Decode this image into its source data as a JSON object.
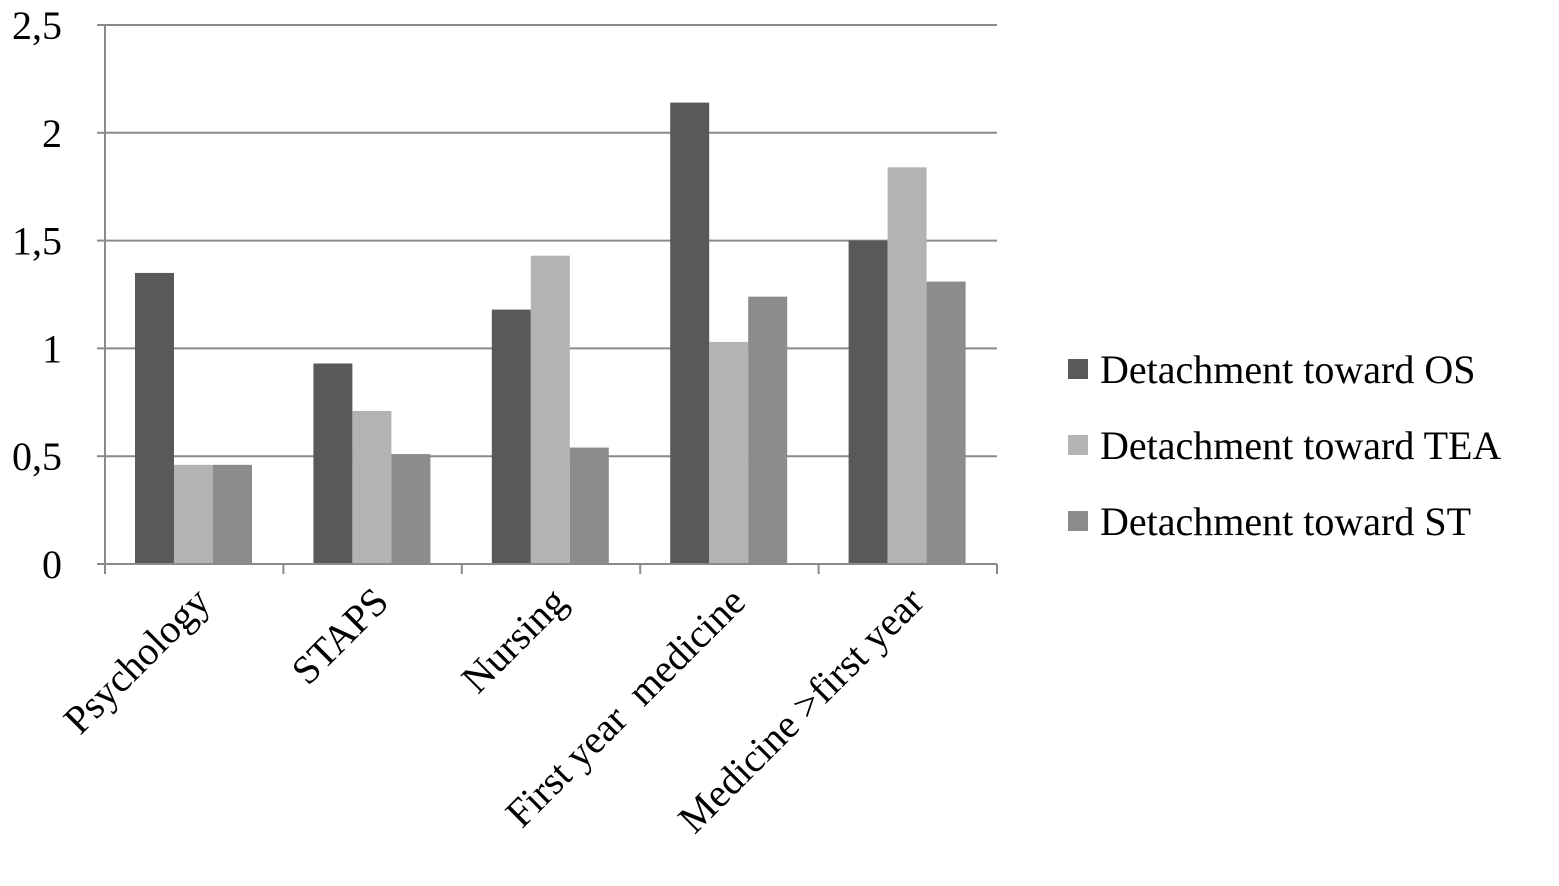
{
  "chart_data": {
    "type": "bar",
    "title": "",
    "xlabel": "",
    "ylabel": "",
    "categories": [
      "Psychology",
      "STAPS",
      "Nursing",
      "First year  medicine",
      "Medicine >first year"
    ],
    "series": [
      {
        "name": "Detachment toward OS",
        "color": "#595959",
        "values": [
          1.35,
          0.93,
          1.18,
          2.14,
          1.5
        ]
      },
      {
        "name": "Detachment toward TEA",
        "color": "#b3b3b3",
        "values": [
          0.46,
          0.71,
          1.43,
          1.03,
          1.84
        ]
      },
      {
        "name": "Detachment toward ST",
        "color": "#8c8c8c",
        "values": [
          0.46,
          0.51,
          0.54,
          1.24,
          1.31
        ]
      }
    ],
    "ylim": [
      0,
      2.5
    ],
    "yticks": [
      "0",
      "0,5",
      "1",
      "1,5",
      "2",
      "2,5"
    ],
    "ytick_values": [
      0,
      0.5,
      1,
      1.5,
      2,
      2.5
    ],
    "grid": true,
    "legend_position": "right"
  }
}
